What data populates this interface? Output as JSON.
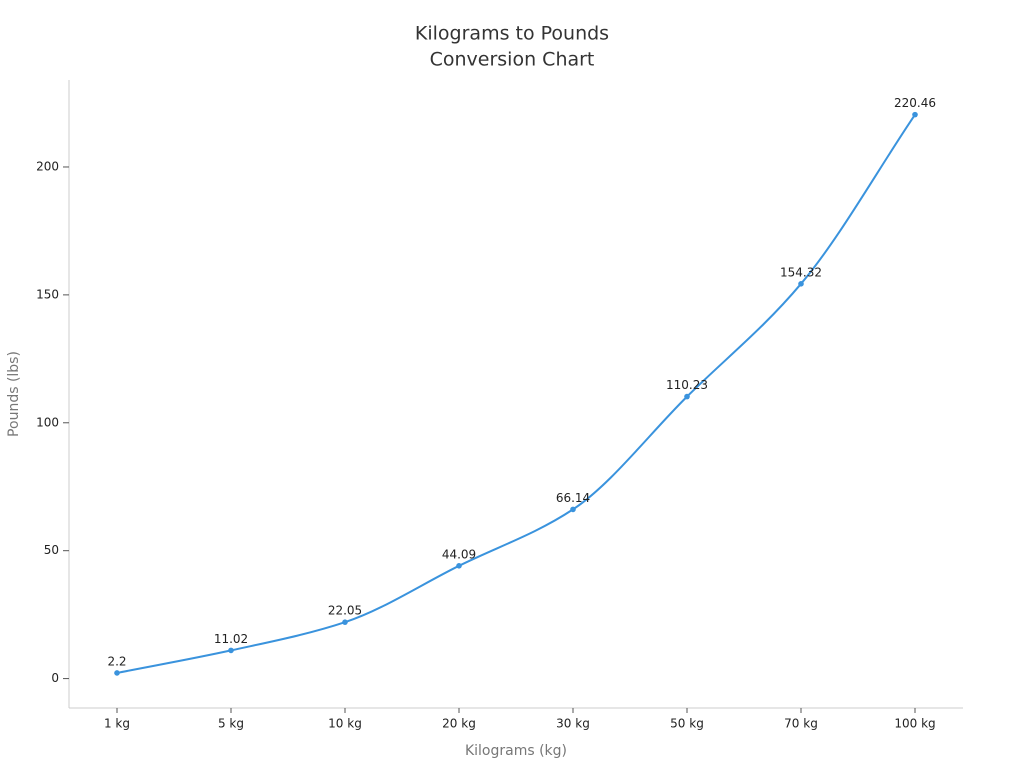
{
  "chart_data": {
    "type": "line",
    "title": [
      "Kilograms to Pounds",
      "Conversion Chart"
    ],
    "x_label": "Kilograms (kg)",
    "y_label": "Pounds (lbs)",
    "categories": [
      "1 kg",
      "5 kg",
      "10 kg",
      "20 kg",
      "30 kg",
      "50 kg",
      "70 kg",
      "100 kg"
    ],
    "series": [
      {
        "name": "Pounds",
        "color": "#3a93dd",
        "values": [
          2.2,
          11.02,
          22.05,
          44.09,
          66.14,
          110.23,
          154.32,
          220.46
        ]
      }
    ],
    "ylim": [
      -11.5,
      234
    ],
    "yticks": [
      0,
      50,
      100,
      150,
      200
    ],
    "grid": false
  }
}
